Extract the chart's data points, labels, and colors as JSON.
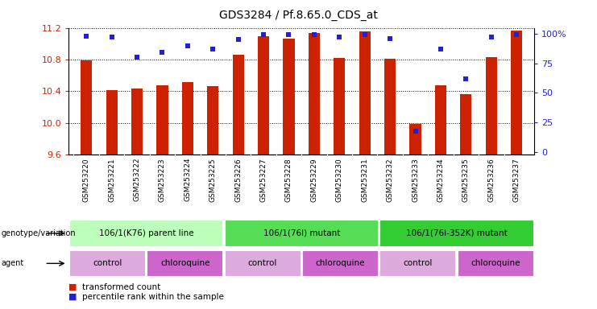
{
  "title": "GDS3284 / Pf.8.65.0_CDS_at",
  "samples": [
    "GSM253220",
    "GSM253221",
    "GSM253222",
    "GSM253223",
    "GSM253224",
    "GSM253225",
    "GSM253226",
    "GSM253227",
    "GSM253228",
    "GSM253229",
    "GSM253230",
    "GSM253231",
    "GSM253232",
    "GSM253233",
    "GSM253234",
    "GSM253235",
    "GSM253236",
    "GSM253237"
  ],
  "bar_values": [
    10.79,
    10.41,
    10.43,
    10.47,
    10.51,
    10.46,
    10.86,
    11.09,
    11.06,
    11.13,
    10.82,
    11.15,
    10.81,
    9.99,
    10.47,
    10.36,
    10.83,
    11.16
  ],
  "percentile_values": [
    98,
    97,
    80,
    84,
    90,
    87,
    95,
    99,
    99,
    99,
    97,
    99,
    96,
    18,
    87,
    62,
    97,
    99
  ],
  "ymin": 9.6,
  "ymax": 11.2,
  "yticks": [
    9.6,
    10.0,
    10.4,
    10.8,
    11.2
  ],
  "right_yticks": [
    0,
    25,
    50,
    75,
    100
  ],
  "bar_color": "#cc2200",
  "percentile_color": "#2222cc",
  "genotype_groups": [
    {
      "label": "106/1(K76) parent line",
      "start": 0,
      "end": 6,
      "color": "#bbffbb"
    },
    {
      "label": "106/1(76I) mutant",
      "start": 6,
      "end": 12,
      "color": "#55dd55"
    },
    {
      "label": "106/1(76I-352K) mutant",
      "start": 12,
      "end": 18,
      "color": "#33cc33"
    }
  ],
  "agent_groups": [
    {
      "label": "control",
      "start": 0,
      "end": 3,
      "color": "#ddaadd"
    },
    {
      "label": "chloroquine",
      "start": 3,
      "end": 6,
      "color": "#cc66cc"
    },
    {
      "label": "control",
      "start": 6,
      "end": 9,
      "color": "#ddaadd"
    },
    {
      "label": "chloroquine",
      "start": 9,
      "end": 12,
      "color": "#cc66cc"
    },
    {
      "label": "control",
      "start": 12,
      "end": 15,
      "color": "#ddaadd"
    },
    {
      "label": "chloroquine",
      "start": 15,
      "end": 18,
      "color": "#cc66cc"
    }
  ],
  "legend_items": [
    {
      "label": "transformed count",
      "color": "#cc2200"
    },
    {
      "label": "percentile rank within the sample",
      "color": "#2222cc"
    }
  ]
}
